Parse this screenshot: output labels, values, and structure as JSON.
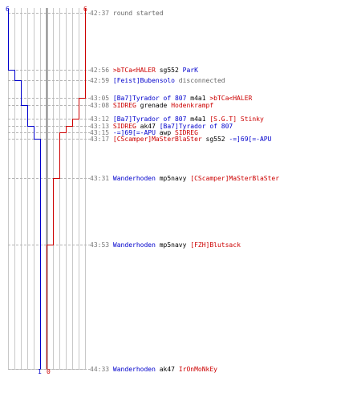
{
  "scores": {
    "blue_start": "6",
    "red_start": "6",
    "blue_end": "1",
    "red_end": "0"
  },
  "colors": {
    "blue": "#0000cc",
    "red": "#cc0000",
    "time": "#777777",
    "message": "#666666",
    "text": "#000000"
  },
  "events": [
    {
      "time": "42:37",
      "parts": [
        {
          "text": "round started",
          "color": "gray"
        }
      ]
    },
    {
      "time": "42:56",
      "parts": [
        {
          "text": ">bTCa<HALER",
          "color": "red"
        },
        {
          "text": " sg552 ",
          "color": "black"
        },
        {
          "text": "ParK",
          "color": "blue"
        }
      ]
    },
    {
      "time": "42:59",
      "parts": [
        {
          "text": "[Feist]Bubensolo",
          "color": "blue"
        },
        {
          "text": " disconnected",
          "color": "gray"
        }
      ]
    },
    {
      "time": "43:05",
      "parts": [
        {
          "text": "[Ba7]Tyrador of 807",
          "color": "blue"
        },
        {
          "text": " m4a1 ",
          "color": "black"
        },
        {
          "text": ">bTCa<HALER",
          "color": "red"
        }
      ]
    },
    {
      "time": "43:08",
      "parts": [
        {
          "text": "SIDREG",
          "color": "red"
        },
        {
          "text": " grenade ",
          "color": "black"
        },
        {
          "text": "Hodenkrampf",
          "color": "red"
        }
      ]
    },
    {
      "time": "43:12",
      "parts": [
        {
          "text": "[Ba7]Tyrador of 807",
          "color": "blue"
        },
        {
          "text": " m4a1 ",
          "color": "black"
        },
        {
          "text": "[S.G.T] Stinky",
          "color": "red"
        }
      ]
    },
    {
      "time": "43:13",
      "parts": [
        {
          "text": "SIDREG",
          "color": "red"
        },
        {
          "text": " ak47 ",
          "color": "black"
        },
        {
          "text": "[Ba7]Tyrador of 807",
          "color": "blue"
        }
      ]
    },
    {
      "time": "43:15",
      "parts": [
        {
          "text": "-=]69[=-APU",
          "color": "blue"
        },
        {
          "text": " awp ",
          "color": "black"
        },
        {
          "text": "SIDREG",
          "color": "red"
        }
      ]
    },
    {
      "time": "43:17",
      "parts": [
        {
          "text": "[CScamper]MaSterBlaSter",
          "color": "red"
        },
        {
          "text": " sg552 ",
          "color": "black"
        },
        {
          "text": "-=]69[=-APU",
          "color": "blue"
        }
      ]
    },
    {
      "time": "43:31",
      "parts": [
        {
          "text": "Wanderhoden",
          "color": "blue"
        },
        {
          "text": " mp5navy ",
          "color": "black"
        },
        {
          "text": "[CScamper]MaSterBlaSter",
          "color": "red"
        }
      ]
    },
    {
      "time": "43:53",
      "parts": [
        {
          "text": "Wanderhoden",
          "color": "blue"
        },
        {
          "text": " mp5navy ",
          "color": "black"
        },
        {
          "text": "[FZH]Blutsack",
          "color": "red"
        }
      ]
    },
    {
      "time": "44:33",
      "parts": [
        {
          "text": "Wanderhoden",
          "color": "blue"
        },
        {
          "text": " ak47 ",
          "color": "black"
        },
        {
          "text": "IrOnMoNkEy",
          "color": "red"
        }
      ]
    }
  ]
}
